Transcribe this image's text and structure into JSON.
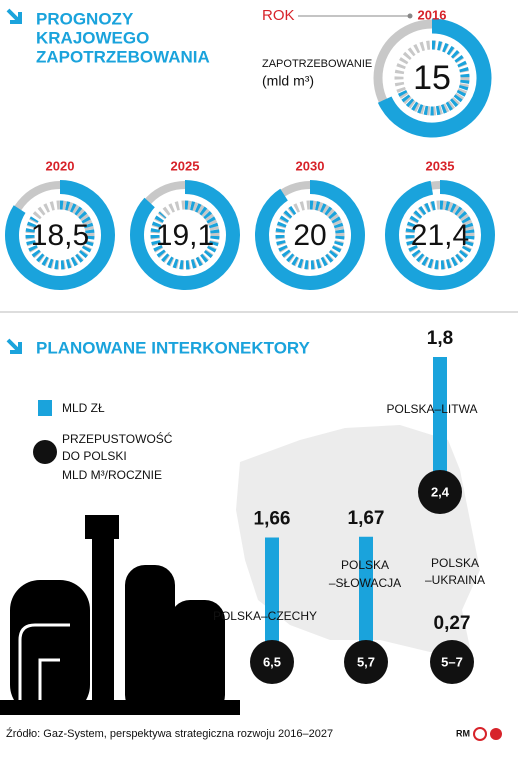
{
  "forecast": {
    "title": [
      "PROGNOZY",
      "KRAJOWEGO",
      "ZAPOTRZEBOWANIA"
    ],
    "year_label": "ROK",
    "demand_label": "ZAPOTRZEBOWANIE",
    "unit": "(mld m³)",
    "ylim": [
      0,
      22
    ],
    "years": [
      "2016",
      "2020",
      "2025",
      "2030",
      "2035"
    ],
    "values": [
      15,
      18.5,
      19.1,
      20,
      21.4
    ],
    "value_labels": [
      "15",
      "18,5",
      "19,1",
      "20",
      "21,4"
    ]
  },
  "interconnectors": {
    "title": "PLANOWANE INTERKONEKTORY",
    "legend": {
      "cost": "MLD ZŁ",
      "capacity": [
        "PRZEPUSTOWOŚĆ",
        "DO POLSKI",
        "MLD M³/ROCZNIE"
      ]
    },
    "ylim": [
      0,
      2
    ],
    "names": [
      [
        "POLSKA–LITWA"
      ],
      [
        "POLSKA–CZECHY"
      ],
      [
        "POLSKA",
        "–SŁOWACJA"
      ],
      [
        "POLSKA",
        "–UKRAINA"
      ]
    ],
    "values": [
      1.8,
      1.66,
      1.67,
      0.27
    ],
    "value_labels": [
      "1,8",
      "1,66",
      "1,67",
      "0,27"
    ],
    "capacity_labels": [
      "2,4",
      "6,5",
      "5,7",
      "5–7"
    ]
  },
  "footer": {
    "source": "Źródło: Gaz-System, perspektywa strategiczna rozwoju 2016–2027",
    "credit": "RM"
  }
}
